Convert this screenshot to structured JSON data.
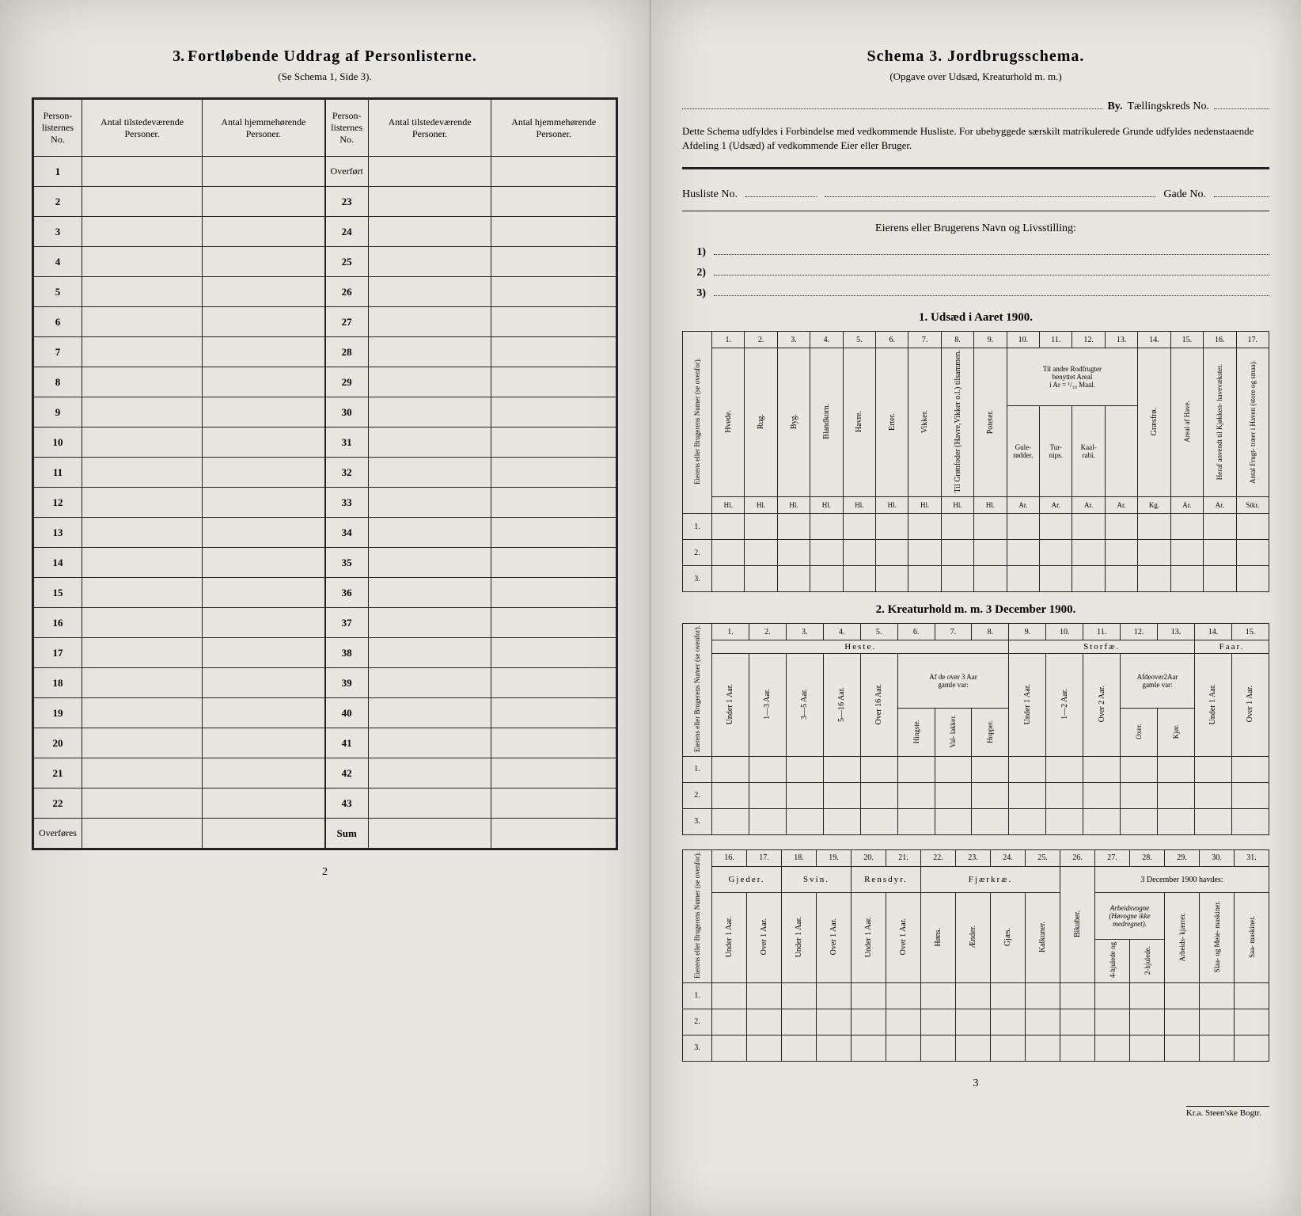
{
  "left": {
    "title_num": "3.",
    "title_main": "Fortløbende Uddrag af Personlisterne.",
    "subtitle": "(Se Schema 1, Side 3).",
    "headers": {
      "c1": "Person-\nlisternes\nNo.",
      "c2": "Antal\ntilstedeværende\nPersoner.",
      "c3": "Antal\nhjemmehørende\nPersoner."
    },
    "left_rows": [
      "1",
      "2",
      "3",
      "4",
      "5",
      "6",
      "7",
      "8",
      "9",
      "10",
      "11",
      "12",
      "13",
      "14",
      "15",
      "16",
      "17",
      "18",
      "19",
      "20",
      "21",
      "22"
    ],
    "left_footer": "Overføres",
    "right_first": "Overført",
    "right_rows": [
      "23",
      "24",
      "25",
      "26",
      "27",
      "28",
      "29",
      "30",
      "31",
      "32",
      "33",
      "34",
      "35",
      "36",
      "37",
      "38",
      "39",
      "40",
      "41",
      "42",
      "43"
    ],
    "right_footer": "Sum",
    "page_num": "2"
  },
  "right": {
    "title_main": "Schema 3.   Jordbrugsschema.",
    "subtitle": "(Opgave over Udsæd, Kreaturhold m. m.)",
    "by_label": "By.",
    "kreds_label": "Tællingskreds No.",
    "intro": "Dette Schema udfyldes i Forbindelse med vedkommende Husliste. For ubebyggede særskilt matrikulerede Grunde udfyldes nedenstaaende Afdeling 1 (Udsæd) af vedkommende Eier eller Bruger.",
    "husliste": "Husliste No.",
    "gade": "Gade No.",
    "owner_head": "Eierens eller Brugerens Navn og Livsstilling:",
    "owner_nums": [
      "1)",
      "2)",
      "3)"
    ],
    "sec1_title": "1.  Udsæd i Aaret 1900.",
    "sec2_title": "2.  Kreaturhold m. m. 3 December 1900.",
    "rowhead_label": "Eierens eller\nBrugerens Numer\n(se ovenfor).",
    "t1": {
      "nums": [
        "1.",
        "2.",
        "3.",
        "4.",
        "5.",
        "6.",
        "7.",
        "8.",
        "9.",
        "10.",
        "11.",
        "12.",
        "13.",
        "14.",
        "15.",
        "16.",
        "17."
      ],
      "cols": [
        "Hvede.",
        "Rug.",
        "Byg.",
        "Blandkorn.",
        "Havre.",
        "Erter.",
        "Vikker.",
        "Til Grønfoder\n(Havre,Vikker\no.l.) tilsammen.",
        "Poteter."
      ],
      "group10_13": "Til andre Rodfrugter\nbenyttet Areal\ni Ar = ¹/₁₀ Maal.",
      "cols10_13": [
        "Gule-\nrødder.",
        "Tur-\nnips.",
        "Kaal-\nrabi.",
        ""
      ],
      "col14": "Græsfrø.",
      "col15": "Areal af\nHave.",
      "col16": "Heraf anvendt\ntil Kjøkken-\nhavevækster.",
      "col17": "Antal Frugt-\ntræer i Haven\n(store og smaa).",
      "units": [
        "Hl.",
        "Hl.",
        "Hl.",
        "Hl.",
        "Hl.",
        "Hl.",
        "Hl.",
        "Hl.",
        "Hl.",
        "Ar.",
        "Ar.",
        "Ar.",
        "Ar.",
        "Kg.",
        "Ar.",
        "Ar.",
        "Stkr."
      ],
      "rows": [
        "1.",
        "2.",
        "3."
      ]
    },
    "t2": {
      "nums": [
        "1.",
        "2.",
        "3.",
        "4.",
        "5.",
        "6.",
        "7.",
        "8.",
        "9.",
        "10.",
        "11.",
        "12.",
        "13.",
        "14.",
        "15."
      ],
      "g_heste": "Heste.",
      "g_storfe": "Storfæ.",
      "g_faar": "Faar.",
      "heste_cols": [
        "Under 1 Aar.",
        "1—3 Aar.",
        "3—5 Aar.",
        "5—16 Aar.",
        "Over 16 Aar."
      ],
      "heste_sub": "Af de over 3 Aar\ngamle var:",
      "heste_sub_cols": [
        "Hingste.",
        "Val-\nlakker.",
        "Hopper."
      ],
      "storfe_cols": [
        "Under 1 Aar.",
        "1—2 Aar.",
        "Over 2 Aar."
      ],
      "storfe_sub": "Afdeover2Aar\ngamle var:",
      "storfe_sub_cols": [
        "Oxer.",
        "Kjør."
      ],
      "faar_cols": [
        "Under 1 Aar.",
        "Over 1 Aar."
      ],
      "rows": [
        "1.",
        "2.",
        "3."
      ]
    },
    "t3": {
      "nums": [
        "16.",
        "17.",
        "18.",
        "19.",
        "20.",
        "21.",
        "22.",
        "23.",
        "24.",
        "25.",
        "26.",
        "27.",
        "28.",
        "29.",
        "30.",
        "31."
      ],
      "g_gjeder": "Gjeder.",
      "g_svin": "Svin.",
      "g_rensdyr": "Rensdyr.",
      "g_fjerkre": "Fjærkræ.",
      "g_havdes": "3 December 1900 havdes:",
      "gjeder_cols": [
        "Under 1 Aar.",
        "Over 1 Aar."
      ],
      "svin_cols": [
        "Under 1 Aar.",
        "Over 1 Aar."
      ],
      "rensdyr_cols": [
        "Under 1 Aar.",
        "Over 1 Aar."
      ],
      "fjerkre_cols": [
        "Høns.",
        "Ænder.",
        "Gjæs.",
        "Kalkuner."
      ],
      "col26": "Bikuber.",
      "havdes_cols": [
        "Arbeidsvogne\n(Høvogne ikke\nmedregnet).",
        "Arbeids-\nkjærrer.",
        "Slaa- og Meie-\nmaskiner.",
        "",
        "Saa-\nmaskiner."
      ],
      "havdes_sub": [
        "4-hjulede\nog",
        "2-hjulede."
      ],
      "rows": [
        "1.",
        "2.",
        "3."
      ]
    },
    "page_num": "3",
    "printer": "Kr.a.   Steen'ske Bogtr."
  }
}
